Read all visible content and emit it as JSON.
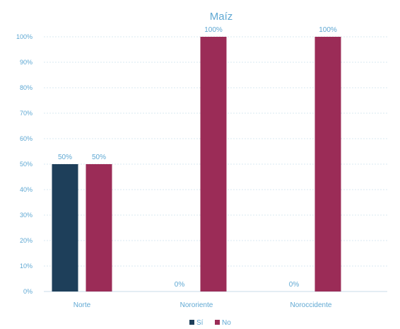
{
  "chart_data": {
    "type": "bar",
    "title": "Maíz",
    "categories": [
      "Norte",
      "Nororiente",
      "Noroccidente"
    ],
    "series": [
      {
        "name": "Sí",
        "color": "#1e3f5a",
        "values": [
          50,
          0,
          0
        ],
        "labels": [
          "50%",
          "0%",
          "0%"
        ]
      },
      {
        "name": "No",
        "color": "#9b2c57",
        "values": [
          50,
          100,
          100
        ],
        "labels": [
          "50%",
          "100%",
          "100%"
        ]
      }
    ],
    "ylim": [
      0,
      100
    ],
    "yticks": [
      "0%",
      "10%",
      "20%",
      "30%",
      "40%",
      "50%",
      "60%",
      "70%",
      "80%",
      "90%",
      "100%"
    ],
    "grid": true,
    "legend": "bottom-center"
  }
}
